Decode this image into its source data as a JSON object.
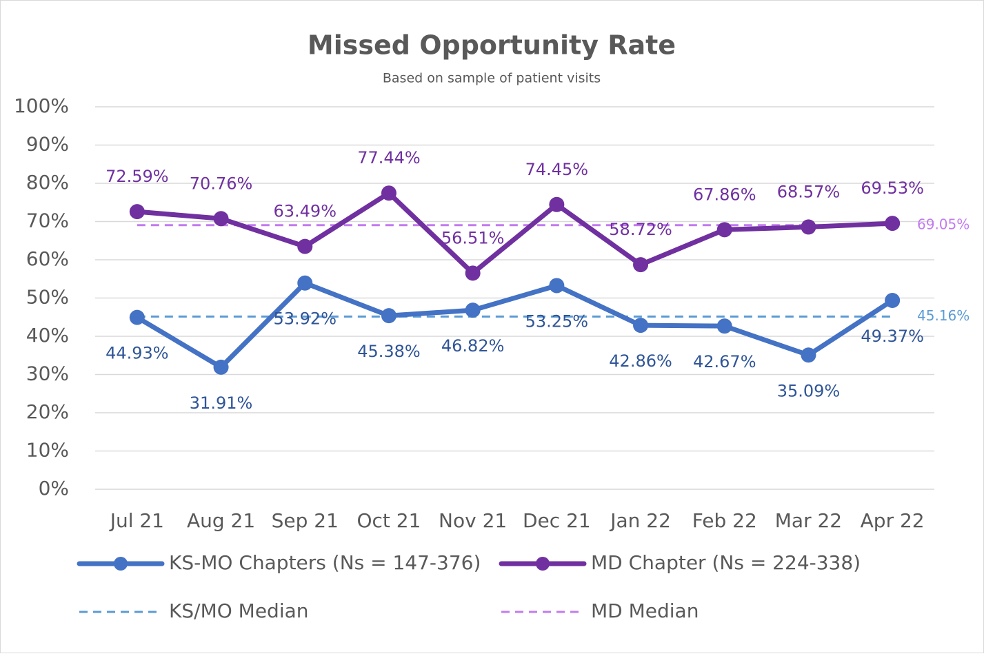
{
  "chart_data": {
    "type": "line",
    "title": "Missed Opportunity Rate",
    "subtitle": "Based on sample of patient visits",
    "categories": [
      "Jul 21",
      "Aug 21",
      "Sep 21",
      "Oct 21",
      "Nov 21",
      "Dec 21",
      "Jan 22",
      "Feb 22",
      "Mar 22",
      "Apr 22"
    ],
    "series": [
      {
        "name": "KS-MO Chapters (Ns = 147-376)",
        "color": "#4472c4",
        "label_color": "#2f5597",
        "values": [
          44.93,
          31.91,
          53.92,
          45.38,
          46.82,
          53.25,
          42.86,
          42.67,
          35.09,
          49.37
        ],
        "value_labels": [
          "44.93%",
          "31.91%",
          "53.92%",
          "45.38%",
          "46.82%",
          "53.25%",
          "42.86%",
          "42.67%",
          "35.09%",
          "49.37%"
        ]
      },
      {
        "name": "MD Chapter (Ns = 224-338)",
        "color": "#7030a0",
        "label_color": "#7030a0",
        "values": [
          72.59,
          70.76,
          63.49,
          77.44,
          56.51,
          74.45,
          58.72,
          67.86,
          68.57,
          69.53
        ],
        "value_labels": [
          "72.59%",
          "70.76%",
          "63.49%",
          "77.44%",
          "56.51%",
          "74.45%",
          "58.72%",
          "67.86%",
          "68.57%",
          "69.53%"
        ]
      }
    ],
    "reference_lines": [
      {
        "name": "KS/MO Median",
        "value": 45.16,
        "label": "45.16%",
        "color": "#5b9bd5"
      },
      {
        "name": "MD Median",
        "value": 69.05,
        "label": "69.05%",
        "color": "#c27bef"
      }
    ],
    "ylim": [
      0,
      100
    ],
    "yticks": [
      {
        "value": 0,
        "label": "0%"
      },
      {
        "value": 10,
        "label": "10%"
      },
      {
        "value": 20,
        "label": "20%"
      },
      {
        "value": 30,
        "label": "30%"
      },
      {
        "value": 40,
        "label": "40%"
      },
      {
        "value": 50,
        "label": "50%"
      },
      {
        "value": 60,
        "label": "60%"
      },
      {
        "value": 70,
        "label": "70%"
      },
      {
        "value": 80,
        "label": "80%"
      },
      {
        "value": 90,
        "label": "90%"
      },
      {
        "value": 100,
        "label": "100%"
      }
    ],
    "grid": true
  }
}
